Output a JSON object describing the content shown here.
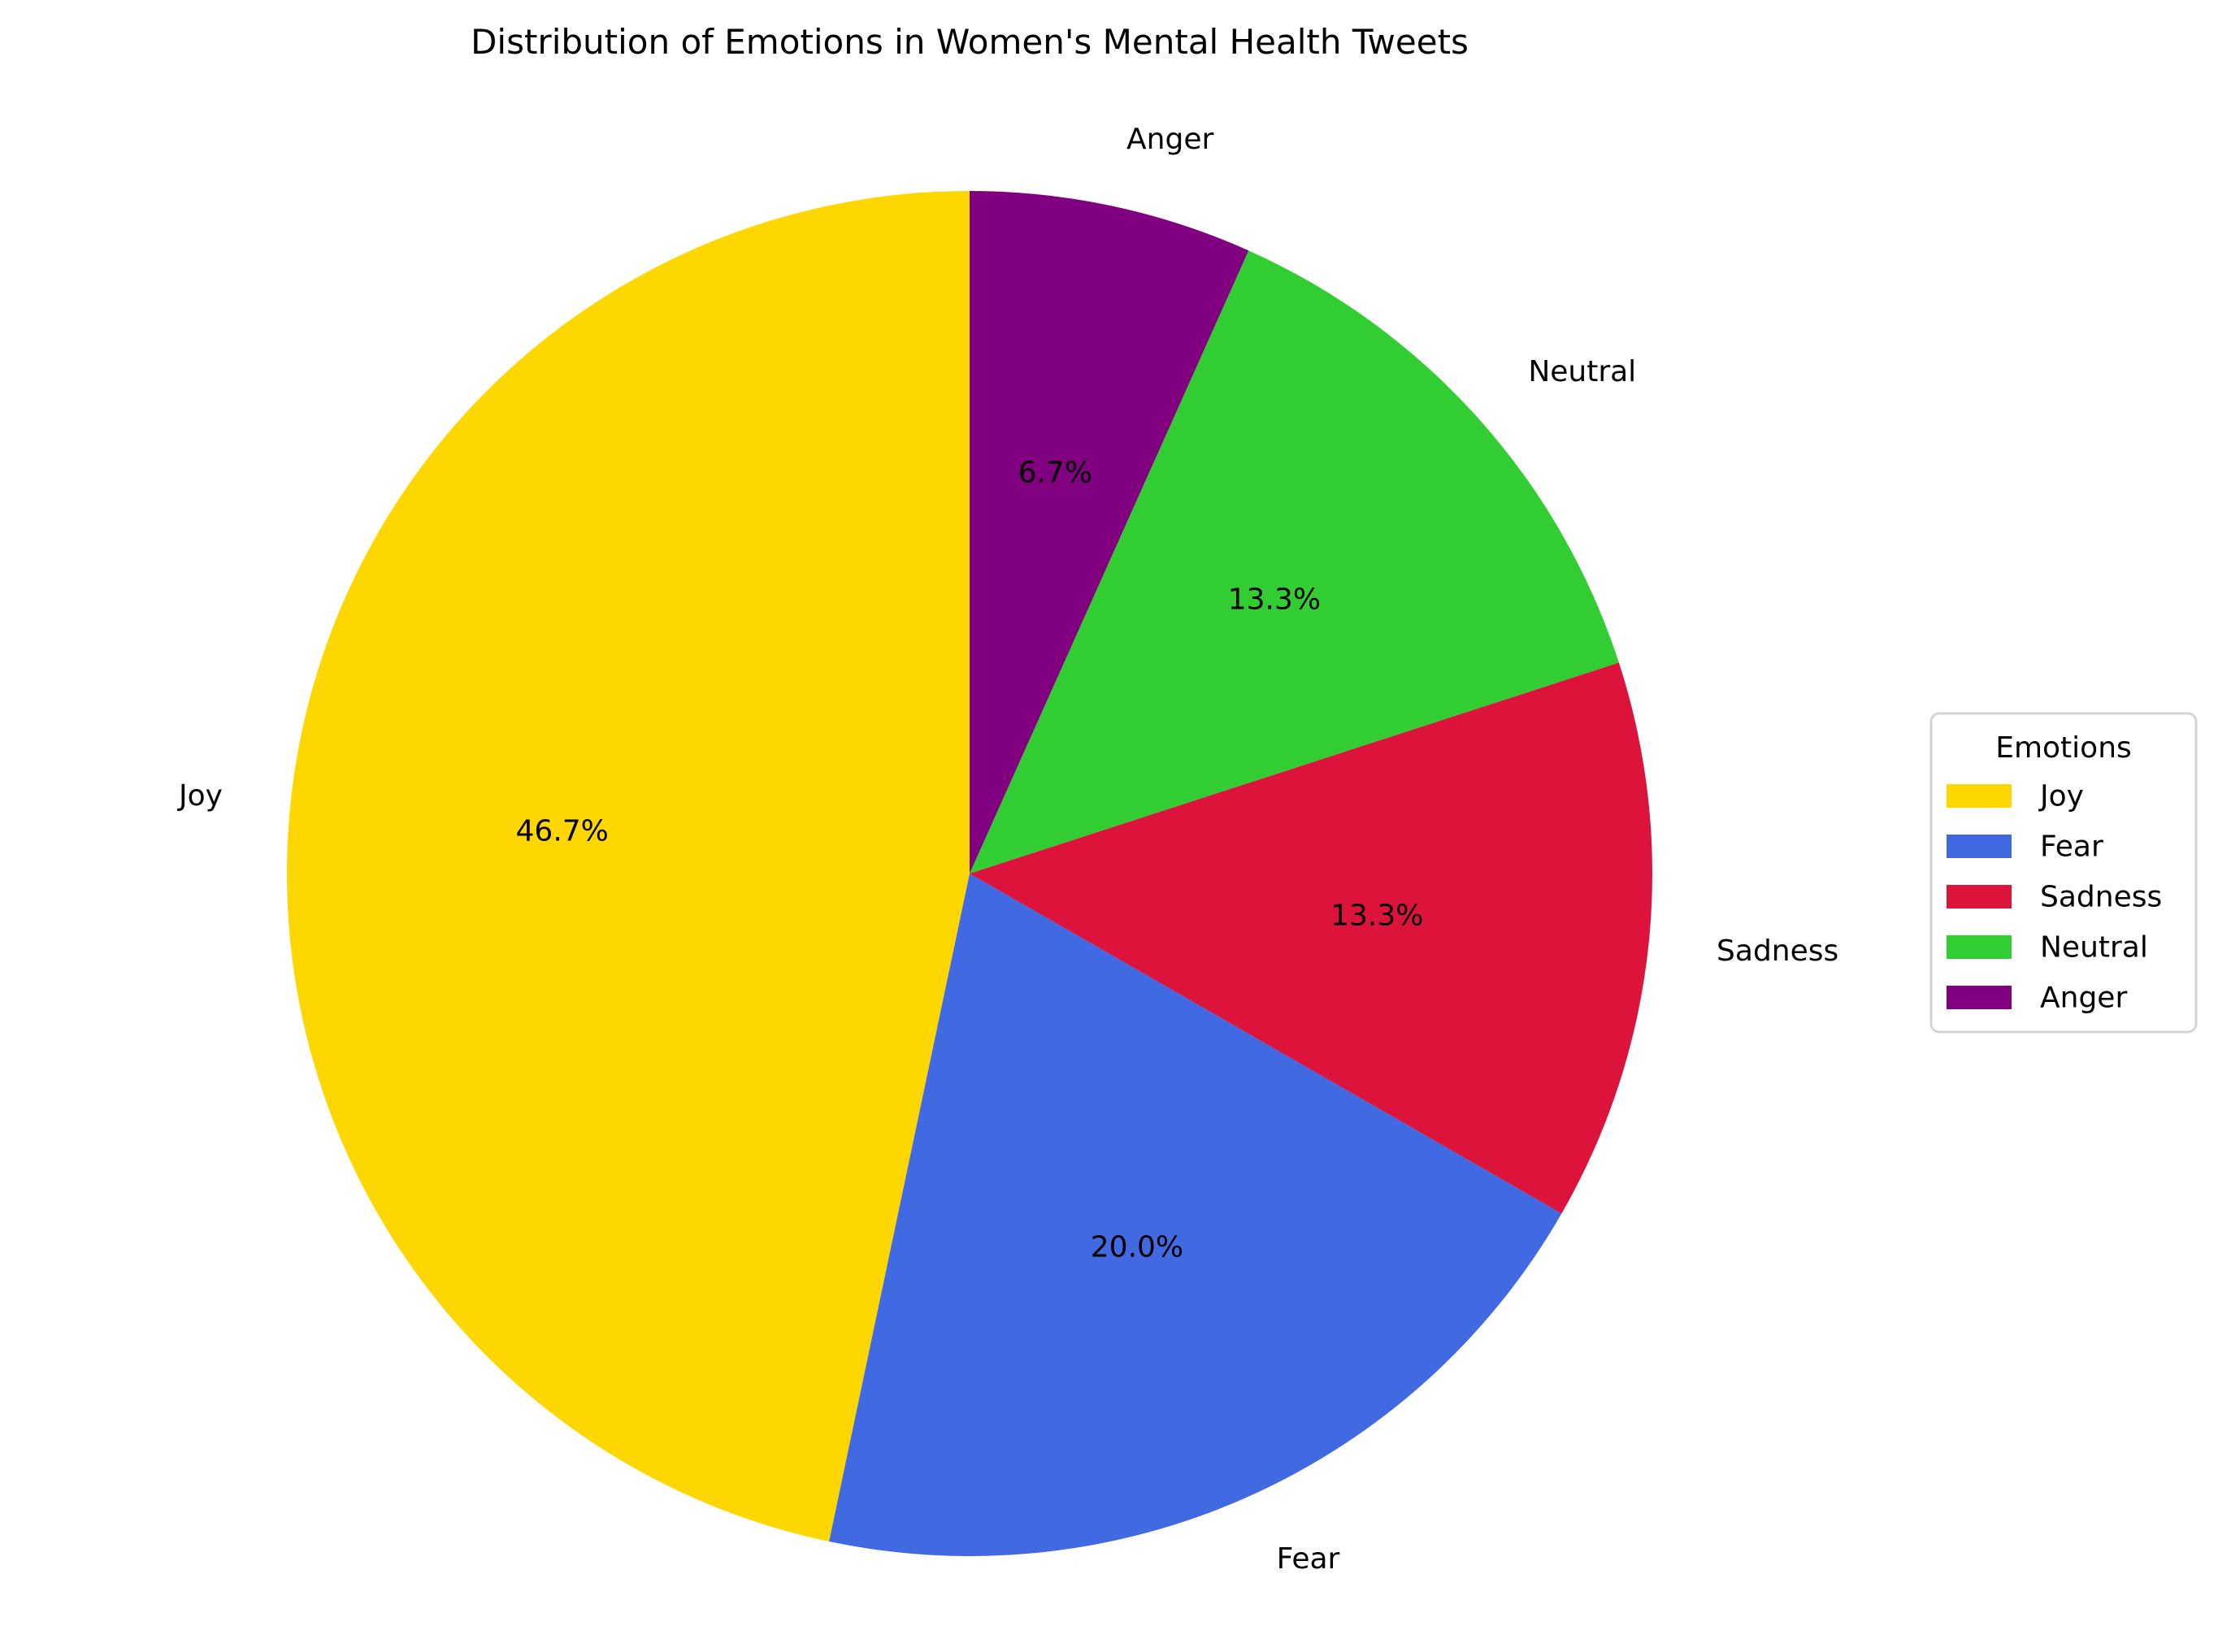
{
  "chart_data": {
    "type": "pie",
    "title": "Distribution of Emotions in Women's Mental Health Tweets",
    "categories": [
      "Joy",
      "Fear",
      "Sadness",
      "Neutral",
      "Anger"
    ],
    "values": [
      46.7,
      20.0,
      13.3,
      13.3,
      6.7
    ],
    "percent_labels": [
      "46.7%",
      "20.0%",
      "13.3%",
      "13.3%",
      "6.7%"
    ],
    "colors": [
      "#FFD700",
      "#4169E1",
      "#DC143C",
      "#32CD32",
      "#800080"
    ],
    "start_angle_deg": 90,
    "direction": "counterclockwise",
    "legend": {
      "title": "Emotions",
      "entries": [
        "Joy",
        "Fear",
        "Sadness",
        "Neutral",
        "Anger"
      ],
      "placement": "right"
    }
  }
}
